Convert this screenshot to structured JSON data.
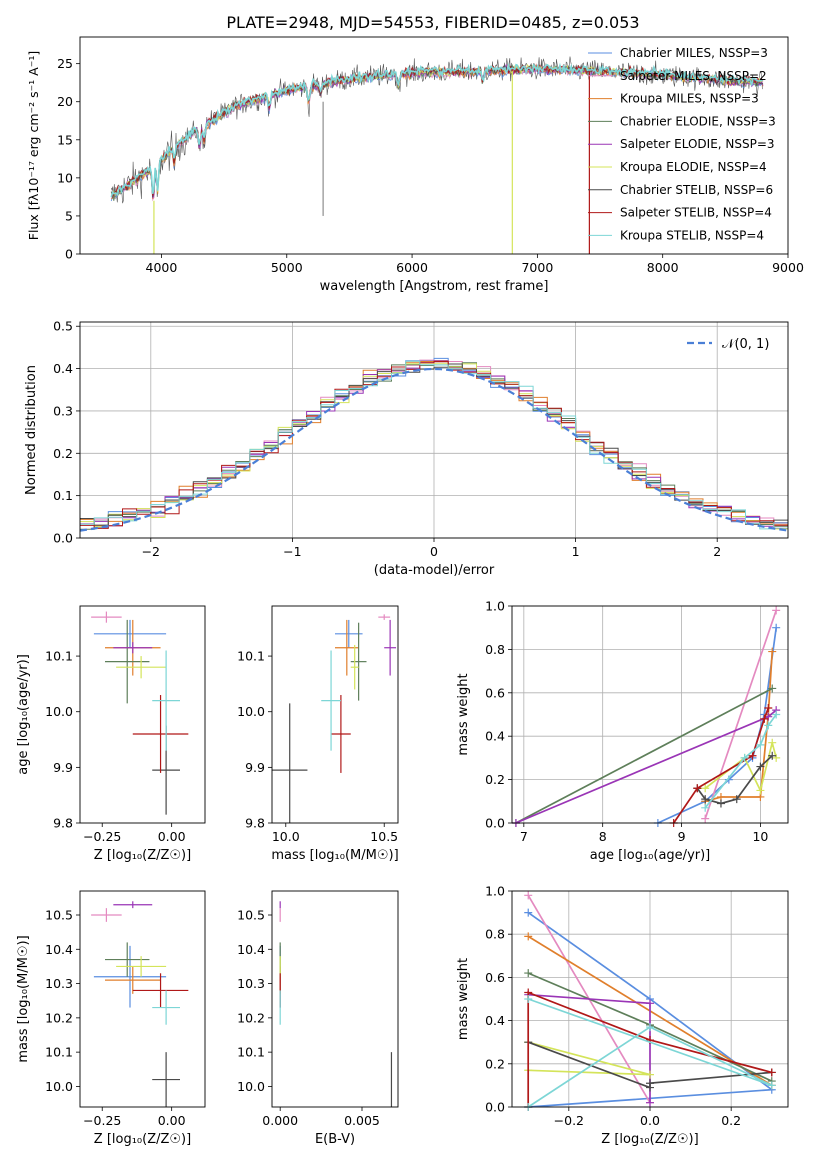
{
  "title": "PLATE=2948, MJD=54553, FIBERID=0485, z=0.053",
  "colors": {
    "chabrier_miles": "#5a8ee0",
    "salpeter_miles": "#e48ac0",
    "kroupa_miles": "#e07f2c",
    "chabrier_elodie": "#5e7f5a",
    "salpeter_elodie": "#9a35b6",
    "kroupa_elodie": "#d4e45a",
    "chabrier_stelib": "#4a4a4a",
    "salpeter_stelib": "#b01818",
    "kroupa_stelib": "#7dd6d6"
  },
  "chart_data": [
    {
      "type": "line",
      "panel": "spectrum",
      "xlabel": "wavelength [Angstrom, rest frame]",
      "ylabel": "Flux [fλ10⁻¹⁷ erg cm⁻² s⁻¹ A⁻¹]",
      "xlim": [
        3350,
        9000
      ],
      "ylim": [
        0,
        28.5
      ],
      "xticks": [
        "4000",
        "5000",
        "6000",
        "7000",
        "8000",
        "9000"
      ],
      "yticks": [
        "0",
        "5",
        "10",
        "15",
        "20",
        "25"
      ],
      "grid": false,
      "legend_position": "right",
      "legend": [
        "Chabrier MILES, N_SSP=3",
        "Salpeter MILES, N_SSP=2",
        "Kroupa MILES, N_SSP=3",
        "Chabrier ELODIE, N_SSP=3",
        "Salpeter ELODIE, N_SSP=3",
        "Kroupa ELODIE, N_SSP=4",
        "Chabrier STELIB, N_SSP=6",
        "Salpeter STELIB, N_SSP=4",
        "Kroupa STELIB, N_SSP=4"
      ],
      "continuum": [
        [
          3600,
          7.5
        ],
        [
          3800,
          9.8
        ],
        [
          3950,
          11.5
        ],
        [
          4100,
          14
        ],
        [
          4300,
          16.5
        ],
        [
          4600,
          19.5
        ],
        [
          5000,
          21.5
        ],
        [
          5500,
          23
        ],
        [
          6000,
          23.8
        ],
        [
          6500,
          24
        ],
        [
          7000,
          24.3
        ],
        [
          7500,
          24
        ],
        [
          8000,
          23.5
        ],
        [
          8500,
          22.8
        ],
        [
          8800,
          22.5
        ]
      ]
    },
    {
      "type": "line",
      "panel": "residuals",
      "xlabel": "(data-model)/error",
      "ylabel": "Normed distribution",
      "xlim": [
        -2.5,
        2.5
      ],
      "ylim": [
        0,
        0.51
      ],
      "xticks": [
        "−2",
        "−1",
        "0",
        "1",
        "2"
      ],
      "yticks": [
        "0.0",
        "0.1",
        "0.2",
        "0.3",
        "0.4",
        "0.5"
      ],
      "grid": true,
      "legend": [
        "𝒩(0, 1)"
      ],
      "legend_position": "top-right"
    },
    {
      "type": "scatter",
      "panel": "age-vs-Z",
      "xlabel": "Z [log₁₀(Z/Z☉)]",
      "ylabel": "age  [log₁₀(age/yr)]",
      "xlim": [
        -0.33,
        0.12
      ],
      "ylim": [
        9.8,
        10.19
      ],
      "xticks": [
        "−0.25",
        "0.00"
      ],
      "yticks": [
        "9.8",
        "9.9",
        "10.0",
        "10.1"
      ],
      "points": [
        {
          "x": -0.15,
          "y": 10.14,
          "xerr": 0.13,
          "yerr": 0.025
        },
        {
          "x": -0.235,
          "y": 10.17,
          "xerr": 0.055,
          "yerr": 0.01
        },
        {
          "x": -0.14,
          "y": 10.115,
          "xerr": 0.1,
          "yerr": 0.05
        },
        {
          "x": -0.16,
          "y": 10.09,
          "xerr": 0.08,
          "yerr": 0.075
        },
        {
          "x": -0.14,
          "y": 10.115,
          "xerr": 0.07,
          "yerr": 0.01
        },
        {
          "x": -0.11,
          "y": 10.08,
          "xerr": 0.09,
          "yerr": 0.02
        },
        {
          "x": -0.02,
          "y": 9.895,
          "xerr": 0.05,
          "yerr": 0.08
        },
        {
          "x": -0.04,
          "y": 9.96,
          "xerr": 0.1,
          "yerr": 0.07
        },
        {
          "x": -0.02,
          "y": 10.02,
          "xerr": 0.05,
          "yerr": 0.09
        }
      ]
    },
    {
      "type": "scatter",
      "panel": "age-vs-mass",
      "xlabel": "mass [log₁₀(M/M☉)]",
      "xlim": [
        9.93,
        10.57
      ],
      "ylim": [
        9.8,
        10.19
      ],
      "xticks": [
        "10.0",
        "10.5"
      ],
      "yticks": [
        "9.8",
        "9.9",
        "10.0",
        "10.1"
      ],
      "points": [
        {
          "x": 10.32,
          "y": 10.14,
          "xerr": 0.07,
          "yerr": 0.025
        },
        {
          "x": 10.5,
          "y": 10.17,
          "xerr": 0.03,
          "yerr": 0.005
        },
        {
          "x": 10.31,
          "y": 10.115,
          "xerr": 0.06,
          "yerr": 0.05
        },
        {
          "x": 10.37,
          "y": 10.09,
          "xerr": 0.04,
          "yerr": 0.07
        },
        {
          "x": 10.53,
          "y": 10.115,
          "xerr": 0.03,
          "yerr": 0.05
        },
        {
          "x": 10.35,
          "y": 10.08,
          "xerr": 0.02,
          "yerr": 0.04
        },
        {
          "x": 10.02,
          "y": 9.895,
          "xerr": 0.09,
          "yerr": 0.12
        },
        {
          "x": 10.28,
          "y": 9.96,
          "xerr": 0.05,
          "yerr": 0.07
        },
        {
          "x": 10.23,
          "y": 10.02,
          "xerr": 0.05,
          "yerr": 0.09
        }
      ]
    },
    {
      "type": "line",
      "panel": "mass-weight-vs-age",
      "xlabel": "age  [log₁₀(age/yr)]",
      "ylabel": "mass weight",
      "xlim": [
        6.85,
        10.35
      ],
      "ylim": [
        0,
        1.0
      ],
      "xticks": [
        "7",
        "8",
        "9",
        "10"
      ],
      "yticks": [
        "0.0",
        "0.2",
        "0.4",
        "0.6",
        "0.8",
        "1.0"
      ],
      "grid": true,
      "series": [
        {
          "x": [
            8.7,
            9.3,
            9.6,
            9.9,
            10.05,
            10.2
          ],
          "y": [
            0.0,
            0.1,
            0.2,
            0.3,
            0.5,
            0.9
          ]
        },
        {
          "x": [
            9.3,
            10.2
          ],
          "y": [
            0.02,
            0.98
          ]
        },
        {
          "x": [
            9.3,
            9.5,
            10.0,
            10.1,
            10.15
          ],
          "y": [
            0.1,
            0.12,
            0.12,
            0.5,
            0.79
          ]
        },
        {
          "x": [
            6.9,
            10.15
          ],
          "y": [
            0.0,
            0.62
          ]
        },
        {
          "x": [
            6.9,
            10.1,
            10.2
          ],
          "y": [
            0.0,
            0.49,
            0.52
          ]
        },
        {
          "x": [
            9.3,
            9.8,
            10.0,
            10.15,
            10.2
          ],
          "y": [
            0.16,
            0.3,
            0.15,
            0.37,
            0.3
          ]
        },
        {
          "x": [
            9.2,
            9.3,
            9.5,
            9.7,
            10.0,
            10.15
          ],
          "y": [
            0.16,
            0.11,
            0.09,
            0.11,
            0.26,
            0.31
          ]
        },
        {
          "x": [
            8.9,
            9.2,
            9.9,
            10.05,
            10.1
          ],
          "y": [
            0.0,
            0.16,
            0.31,
            0.48,
            0.53
          ]
        },
        {
          "x": [
            9.3,
            9.8,
            10.0,
            10.1,
            10.2
          ],
          "y": [
            0.07,
            0.3,
            0.36,
            0.45,
            0.5
          ]
        }
      ]
    },
    {
      "type": "scatter",
      "panel": "mass-vs-Z",
      "xlabel": "Z [log₁₀(Z/Z☉)]",
      "ylabel": "mass [log₁₀(M/M☉)]",
      "xlim": [
        -0.33,
        0.12
      ],
      "ylim": [
        9.94,
        10.57
      ],
      "xticks": [
        "−0.25",
        "0.00"
      ],
      "yticks": [
        "10.0",
        "10.1",
        "10.2",
        "10.3",
        "10.4",
        "10.5"
      ],
      "points": [
        {
          "x": -0.15,
          "y": 10.32,
          "xerr": 0.13,
          "yerr": 0.09
        },
        {
          "x": -0.235,
          "y": 10.5,
          "xerr": 0.055,
          "yerr": 0.02
        },
        {
          "x": -0.14,
          "y": 10.31,
          "xerr": 0.1,
          "yerr": 0.04
        },
        {
          "x": -0.16,
          "y": 10.37,
          "xerr": 0.08,
          "yerr": 0.05
        },
        {
          "x": -0.14,
          "y": 10.53,
          "xerr": 0.07,
          "yerr": 0.01
        },
        {
          "x": -0.11,
          "y": 10.35,
          "xerr": 0.09,
          "yerr": 0.03
        },
        {
          "x": -0.02,
          "y": 10.02,
          "xerr": 0.05,
          "yerr": 0.08
        },
        {
          "x": -0.04,
          "y": 10.28,
          "xerr": 0.1,
          "yerr": 0.05
        },
        {
          "x": -0.02,
          "y": 10.23,
          "xerr": 0.05,
          "yerr": 0.05
        }
      ]
    },
    {
      "type": "scatter",
      "panel": "mass-vs-EBV",
      "xlabel": "E(B-V)",
      "xlim": [
        -0.0005,
        0.0072
      ],
      "ylim": [
        9.94,
        10.57
      ],
      "xticks": [
        "0.000",
        "0.005"
      ],
      "yticks": [
        "10.0",
        "10.1",
        "10.2",
        "10.3",
        "10.4",
        "10.5"
      ],
      "points": [
        {
          "x": 0.0,
          "y": 10.32,
          "yerr": 0.09
        },
        {
          "x": 0.0,
          "y": 10.5,
          "yerr": 0.02
        },
        {
          "x": 0.0,
          "y": 10.31,
          "yerr": 0.04
        },
        {
          "x": 0.0,
          "y": 10.37,
          "yerr": 0.05
        },
        {
          "x": 0.0,
          "y": 10.53,
          "yerr": 0.01
        },
        {
          "x": 0.0,
          "y": 10.35,
          "yerr": 0.03
        },
        {
          "x": 0.0068,
          "y": 10.02,
          "yerr": 0.08
        },
        {
          "x": 0.0,
          "y": 10.28,
          "yerr": 0.05
        },
        {
          "x": 0.0,
          "y": 10.23,
          "yerr": 0.05
        }
      ]
    },
    {
      "type": "line",
      "panel": "mass-weight-vs-Z",
      "xlabel": "Z [log₁₀(Z/Z☉)]",
      "ylabel": "mass weight",
      "xlim": [
        -0.34,
        0.34
      ],
      "ylim": [
        0,
        1.0
      ],
      "xticks": [
        "−0.2",
        "0.0",
        "0.2"
      ],
      "yticks": [
        "0.0",
        "0.2",
        "0.4",
        "0.6",
        "0.8",
        "1.0"
      ],
      "grid": true,
      "series": [
        {
          "x": [
            -0.3,
            0.0,
            0.3,
            -0.3
          ],
          "y": [
            0.9,
            0.5,
            0.08,
            0.0
          ]
        },
        {
          "x": [
            -0.3,
            0.0
          ],
          "y": [
            0.98,
            0.02
          ]
        },
        {
          "x": [
            -0.3,
            0.3
          ],
          "y": [
            0.79,
            0.1
          ]
        },
        {
          "x": [
            -0.3,
            0.0,
            0.3
          ],
          "y": [
            0.62,
            0.38,
            0.12
          ]
        },
        {
          "x": [
            -0.3,
            0.0,
            0.0
          ],
          "y": [
            0.52,
            0.48,
            0.02
          ]
        },
        {
          "x": [
            -0.3,
            0.0,
            -0.3
          ],
          "y": [
            0.3,
            0.15,
            0.17
          ]
        },
        {
          "x": [
            -0.3,
            0.0,
            0.0,
            0.3
          ],
          "y": [
            0.3,
            0.09,
            0.11,
            0.16
          ]
        },
        {
          "x": [
            -0.3,
            -0.3,
            0.0,
            0.3
          ],
          "y": [
            0.0,
            0.53,
            0.31,
            0.16
          ]
        },
        {
          "x": [
            -0.3,
            0.0,
            0.3,
            -0.3
          ],
          "y": [
            0.0,
            0.37,
            0.1,
            0.5
          ]
        }
      ]
    }
  ]
}
